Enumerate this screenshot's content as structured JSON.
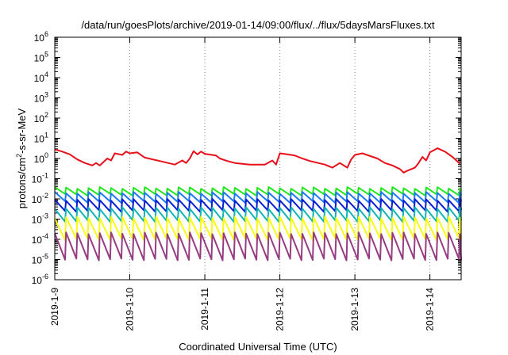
{
  "chart_data": {
    "type": "line",
    "title": "/data/run/goesPlots/archive/2019-01-14/09:00/flux/../flux/5daysMarsFluxes.txt",
    "xlabel": "Coordinated Universal Time (UTC)",
    "ylabel": {
      "base": "protons/cm",
      "sup": "2",
      "rest": "-s-sr-MeV"
    },
    "yscale": "log",
    "ylim": [
      1e-06,
      1000000.0
    ],
    "xlim": [
      "2019-01-09T00:00",
      "2019-01-14T10:00"
    ],
    "grid": true,
    "legend": "none",
    "x_ticks": [
      "2019-1-9",
      "2019-1-10",
      "2019-1-11",
      "2019-1-12",
      "2019-1-13",
      "2019-1-14"
    ],
    "y_ticks": [
      {
        "base": "10",
        "exp": "-6"
      },
      {
        "base": "10",
        "exp": "-5"
      },
      {
        "base": "10",
        "exp": "-4"
      },
      {
        "base": "10",
        "exp": "-3"
      },
      {
        "base": "10",
        "exp": "-2"
      },
      {
        "base": "10",
        "exp": "-1"
      },
      {
        "base": "10",
        "exp": "0"
      },
      {
        "base": "10",
        "exp": "1"
      },
      {
        "base": "10",
        "exp": "2"
      },
      {
        "base": "10",
        "exp": "3"
      },
      {
        "base": "10",
        "exp": "4"
      },
      {
        "base": "10",
        "exp": "5"
      },
      {
        "base": "10",
        "exp": "6"
      }
    ],
    "series": [
      {
        "color": "#e8101a",
        "x": [
          "2019-01-09T00:00",
          "2019-01-09T02:24",
          "2019-01-09T04:48",
          "2019-01-09T07:12",
          "2019-01-09T09:36",
          "2019-01-09T12:00",
          "2019-01-09T13:12",
          "2019-01-09T14:24",
          "2019-01-09T16:48",
          "2019-01-09T18:00",
          "2019-01-09T19:12",
          "2019-01-09T21:36",
          "2019-01-09T22:48",
          "2019-01-10T00:00",
          "2019-01-10T02:24",
          "2019-01-10T04:48",
          "2019-01-10T09:36",
          "2019-01-10T14:24",
          "2019-01-10T16:48",
          "2019-01-10T18:00",
          "2019-01-10T19:12",
          "2019-01-10T20:24",
          "2019-01-10T21:36",
          "2019-01-10T22:48",
          "2019-01-11T00:00",
          "2019-01-11T03:36",
          "2019-01-11T04:48",
          "2019-01-11T07:12",
          "2019-01-11T09:36",
          "2019-01-11T14:24",
          "2019-01-11T19:12",
          "2019-01-11T21:36",
          "2019-01-11T22:48",
          "2019-01-12T00:00",
          "2019-01-12T02:24",
          "2019-01-12T04:48",
          "2019-01-12T07:12",
          "2019-01-12T09:36",
          "2019-01-12T14:24",
          "2019-01-12T16:48",
          "2019-01-12T19:12",
          "2019-01-12T21:36",
          "2019-01-12T22:48",
          "2019-01-13T00:00",
          "2019-01-13T02:24",
          "2019-01-13T07:12",
          "2019-01-13T09:36",
          "2019-01-13T12:00",
          "2019-01-13T14:24",
          "2019-01-13T15:36",
          "2019-01-13T16:48",
          "2019-01-13T19:12",
          "2019-01-13T20:24",
          "2019-01-13T21:36",
          "2019-01-13T22:48",
          "2019-01-14T00:00",
          "2019-01-14T02:24",
          "2019-01-14T04:48",
          "2019-01-14T07:12",
          "2019-01-14T09:36"
        ],
        "y": [
          2.8,
          2.2,
          1.6,
          0.9,
          0.6,
          0.45,
          0.6,
          0.45,
          1.0,
          0.8,
          1.8,
          1.5,
          2.2,
          1.8,
          2.0,
          1.1,
          0.75,
          0.5,
          0.8,
          0.6,
          1.0,
          2.3,
          1.6,
          2.2,
          1.7,
          1.4,
          1.0,
          0.75,
          0.6,
          0.5,
          0.5,
          0.8,
          0.5,
          1.8,
          1.6,
          1.4,
          1.0,
          0.75,
          0.5,
          0.35,
          0.6,
          0.35,
          0.9,
          1.5,
          1.8,
          1.0,
          0.6,
          0.45,
          0.3,
          0.2,
          0.25,
          0.35,
          0.6,
          1.2,
          0.8,
          2.0,
          3.2,
          2.2,
          1.2,
          0.55
        ]
      },
      {
        "color": "#22e61e",
        "pattern": "sawtooth",
        "period_hours": 3.6,
        "high": 0.035,
        "low": 0.016
      },
      {
        "color": "#1e78f0",
        "pattern": "sawtooth",
        "period_hours": 3.6,
        "high": 0.02,
        "low": 0.007
      },
      {
        "color": "#0a1ed2",
        "pattern": "sawtooth",
        "period_hours": 3.6,
        "high": 0.009,
        "low": 0.0025
      },
      {
        "color": "#12b4b4",
        "pattern": "sawtooth",
        "period_hours": 3.6,
        "high": 0.0035,
        "low": 0.0008
      },
      {
        "color": "#fafa14",
        "pattern": "sawtooth",
        "period_hours": 3.6,
        "high": 0.0012,
        "low": 0.0001
      },
      {
        "color": "#963c82",
        "pattern": "sawtooth",
        "period_hours": 3.6,
        "high": 0.0002,
        "low": 1e-05
      }
    ]
  }
}
